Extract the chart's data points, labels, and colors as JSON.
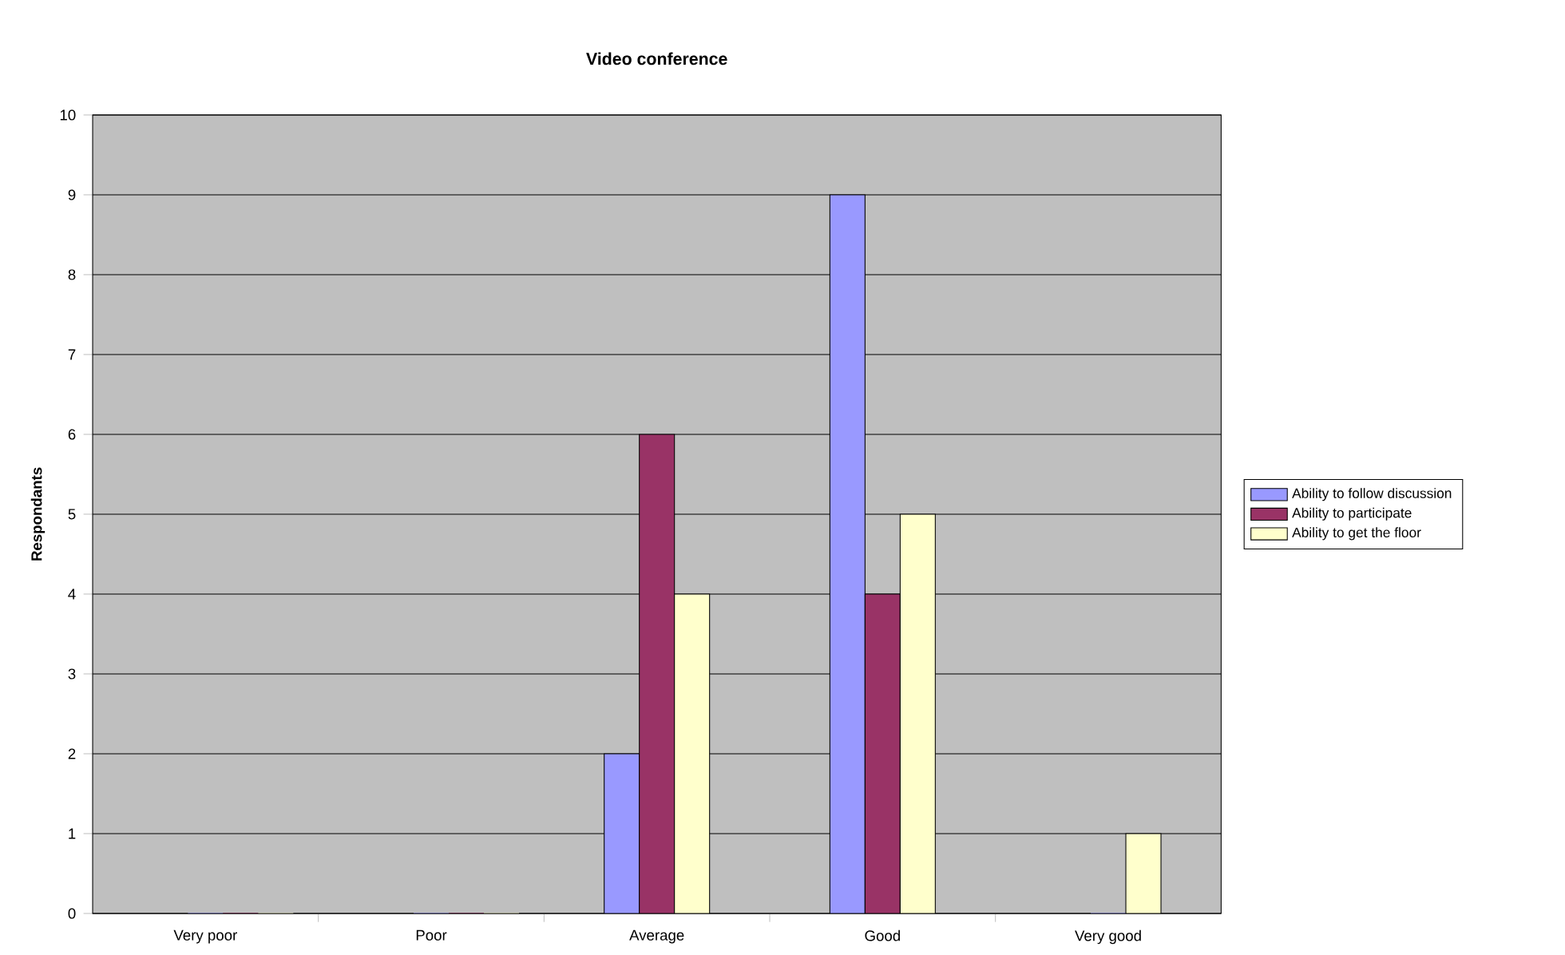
{
  "chart_data": {
    "type": "bar",
    "title": "Video conference",
    "ylabel": "Respondants",
    "categories": [
      "Very poor",
      "Poor",
      "Average",
      "Good",
      "Very good"
    ],
    "series": [
      {
        "name": "Ability to follow discussion",
        "color": "#9999ff",
        "values": [
          0,
          0,
          2,
          9,
          0
        ]
      },
      {
        "name": "Ability to participate",
        "color": "#993366",
        "values": [
          0,
          0,
          6,
          4,
          0
        ]
      },
      {
        "name": "Ability to get the floor",
        "color": "#ffffcc",
        "values": [
          0,
          0,
          4,
          5,
          1
        ]
      }
    ],
    "ylim": [
      0,
      10
    ],
    "yticks": [
      0,
      1,
      2,
      3,
      4,
      5,
      6,
      7,
      8,
      9,
      10
    ],
    "grid": "y",
    "legend": "right"
  }
}
